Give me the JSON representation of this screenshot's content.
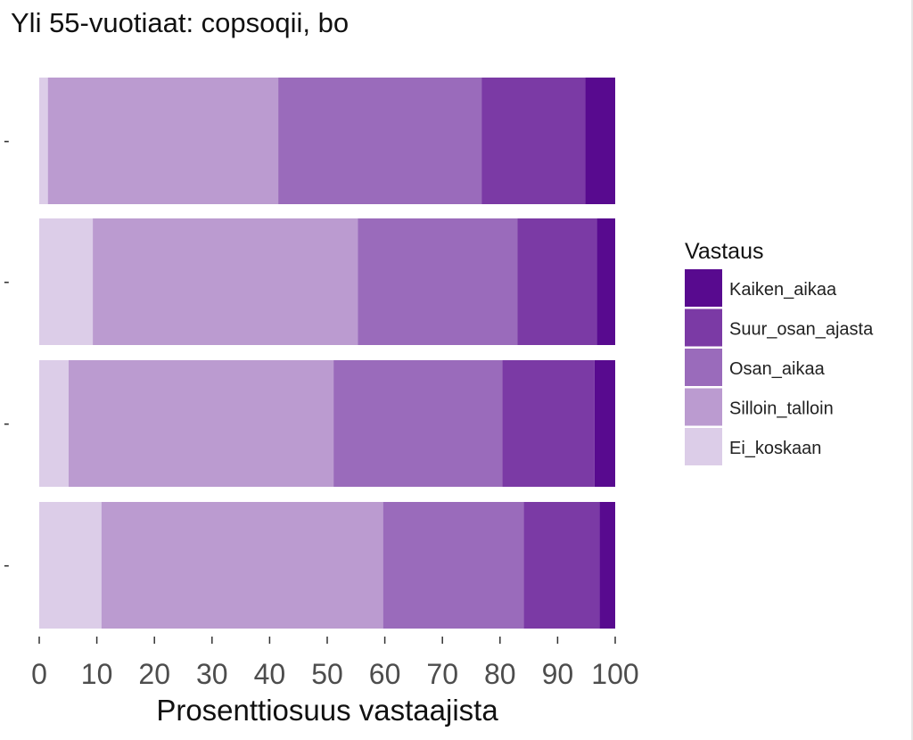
{
  "chart_data": {
    "type": "bar",
    "orientation": "horizontal",
    "stacked": true,
    "title": "Yli 55-vuotiaat: copsoqii, bo",
    "xlabel": "Prosenttiosuus vastaajista",
    "ylabel": "",
    "xlim": [
      0,
      100
    ],
    "x_ticks": [
      "0",
      "10",
      "20",
      "30",
      "40",
      "50",
      "60",
      "70",
      "80",
      "90",
      "100"
    ],
    "categories": [
      "-",
      "-",
      "-",
      "-"
    ],
    "legend": {
      "title": "Vastaus",
      "position": "right",
      "entries": [
        "Kaiken_aikaa",
        "Suur_osan_ajasta",
        "Osan_aikaa",
        "Silloin_talloin",
        "Ei_koskaan"
      ]
    },
    "grid": false,
    "series": [
      {
        "name": "Ei_koskaan",
        "color": "#dccde8",
        "values": [
          1.5,
          9.3,
          5.1,
          10.8
        ]
      },
      {
        "name": "Silloin_talloin",
        "color": "#bb9bd0",
        "values": [
          40.0,
          46.0,
          46.0,
          48.9
        ]
      },
      {
        "name": "Osan_aikaa",
        "color": "#9a6bbb",
        "values": [
          35.3,
          27.7,
          29.3,
          24.4
        ]
      },
      {
        "name": "Suur_osan_ajasta",
        "color": "#7b3aa5",
        "values": [
          18.0,
          13.8,
          16.0,
          13.2
        ]
      },
      {
        "name": "Kaiken_aikaa",
        "color": "#580a8f",
        "values": [
          5.2,
          3.2,
          3.6,
          2.7
        ]
      }
    ]
  }
}
